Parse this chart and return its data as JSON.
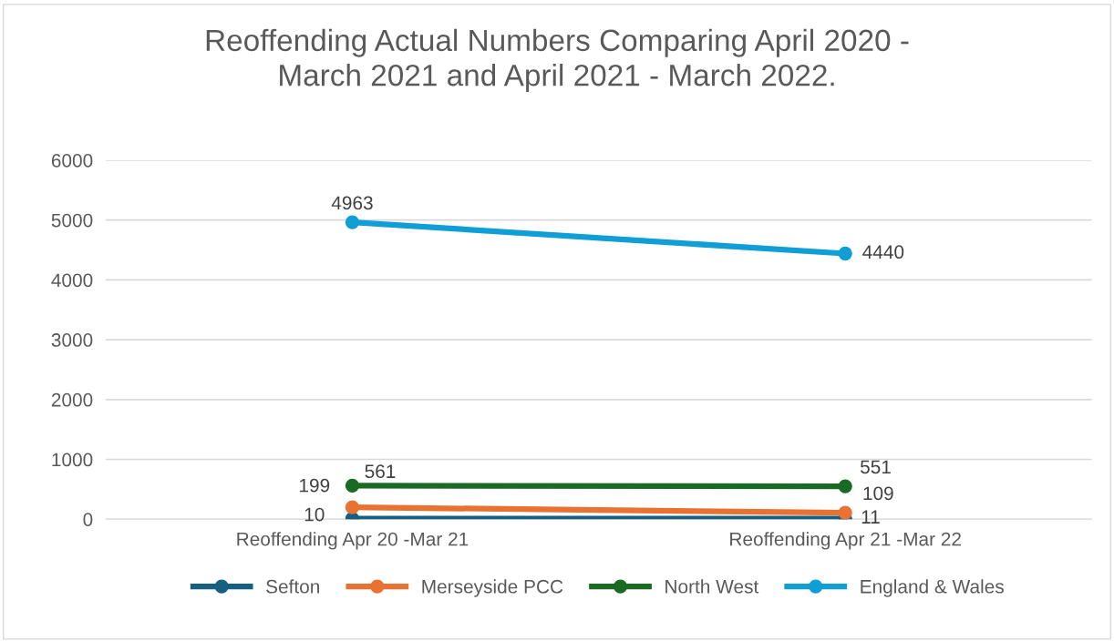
{
  "chart_data": {
    "type": "line",
    "title": "Reoffending Actual Numbers Comparing April 2020 -\nMarch 2021 and April 2021 - March 2022.",
    "categories": [
      "Reoffending Apr 20 -Mar 21",
      "Reoffending Apr 21 -Mar 22"
    ],
    "series": [
      {
        "name": "Sefton",
        "color": "#156082",
        "values": [
          10,
          11
        ]
      },
      {
        "name": "Merseyside PCC",
        "color": "#e97132",
        "values": [
          199,
          109
        ]
      },
      {
        "name": "North West",
        "color": "#196b24",
        "values": [
          561,
          551
        ]
      },
      {
        "name": "England & Wales",
        "color": "#0f9ed5",
        "values": [
          4963,
          4440
        ]
      }
    ],
    "ylim": [
      0,
      6000
    ],
    "yticks": [
      0,
      1000,
      2000,
      3000,
      4000,
      5000,
      6000
    ],
    "grid": "y",
    "legend": "bottom",
    "marker": "circle",
    "line_style": "solid",
    "data_labels": true
  }
}
